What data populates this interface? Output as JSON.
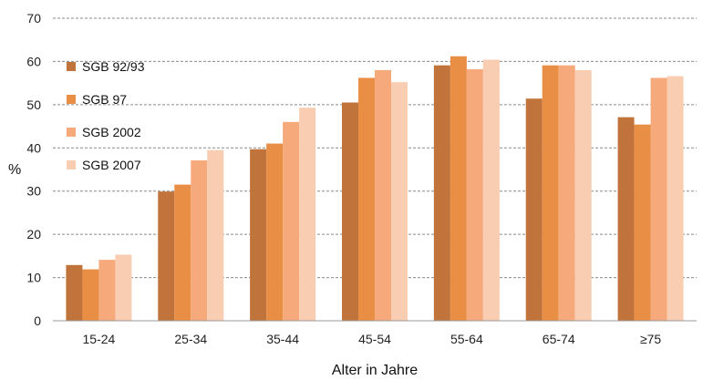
{
  "chart_data": {
    "type": "bar",
    "categories": [
      "15-24",
      "25-34",
      "35-44",
      "45-54",
      "55-64",
      "65-74",
      "≥75"
    ],
    "series": [
      {
        "name": "SGB 92/93",
        "color": "#c0733a",
        "values": [
          12.9,
          29.9,
          39.7,
          50.5,
          59.1,
          51.4,
          47.1
        ]
      },
      {
        "name": "SGB 97",
        "color": "#e98e45",
        "values": [
          11.9,
          31.5,
          41.0,
          56.2,
          61.2,
          59.1,
          45.4
        ]
      },
      {
        "name": "SGB 2002",
        "color": "#f6a97b",
        "values": [
          14.1,
          37.1,
          46.0,
          58.0,
          58.2,
          59.1,
          56.2
        ]
      },
      {
        "name": "SGB 2007",
        "color": "#f9cdb2",
        "values": [
          15.3,
          39.5,
          49.3,
          55.2,
          60.4,
          58.0,
          56.6
        ]
      }
    ],
    "title": "",
    "xlabel": "Alter in Jahre",
    "ylabel": "%",
    "ylim": [
      0,
      70
    ],
    "yticks": [
      "0",
      "10",
      "20",
      "30",
      "40",
      "50",
      "60",
      "70"
    ],
    "grid": true,
    "legend_position": "top-left"
  }
}
